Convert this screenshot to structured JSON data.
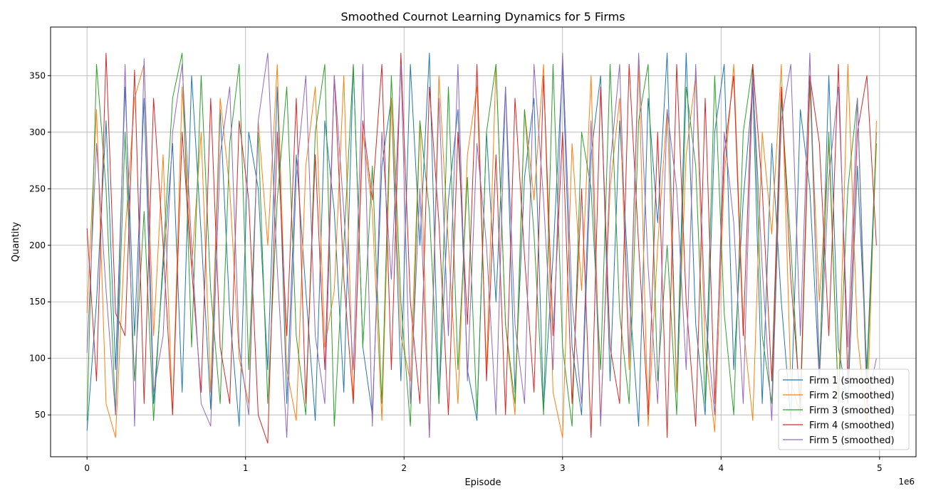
{
  "chart_data": {
    "type": "line",
    "title": "Smoothed Cournot Learning Dynamics for 5 Firms",
    "xlabel": "Episode",
    "ylabel": "Quantity",
    "x_offset_label": "1e6",
    "xlim": [
      -230000,
      5230000
    ],
    "ylim": [
      13,
      393
    ],
    "x_ticks": [
      0,
      1,
      2,
      3,
      4,
      5
    ],
    "y_ticks": [
      50,
      100,
      150,
      200,
      250,
      300,
      350
    ],
    "grid": true,
    "legend_position": "bottom-right",
    "series": [
      {
        "name": "Firm 1 (smoothed)",
        "color": "#1f77b4",
        "x": [
          0,
          60000,
          120000,
          180000,
          240000,
          300000,
          360000,
          420000,
          480000,
          540000,
          600000,
          660000,
          720000,
          780000,
          840000,
          900000,
          960000,
          1020000,
          1080000,
          1140000,
          1200000,
          1260000,
          1320000,
          1380000,
          1440000,
          1500000,
          1560000,
          1620000,
          1680000,
          1740000,
          1800000,
          1860000,
          1920000,
          1980000,
          2040000,
          2100000,
          2160000,
          2220000,
          2280000,
          2340000,
          2400000,
          2460000,
          2520000,
          2580000,
          2640000,
          2700000,
          2760000,
          2820000,
          2880000,
          2940000,
          3000000,
          3060000,
          3120000,
          3180000,
          3240000,
          3300000,
          3360000,
          3420000,
          3480000,
          3540000,
          3600000,
          3660000,
          3720000,
          3780000,
          3840000,
          3900000,
          3960000,
          4020000,
          4080000,
          4140000,
          4200000,
          4260000,
          4320000,
          4380000,
          4440000,
          4500000,
          4560000,
          4620000,
          4680000,
          4740000,
          4800000,
          4860000,
          4920000,
          4980000
        ],
        "values": [
          36,
          150,
          310,
          90,
          340,
          120,
          330,
          60,
          180,
          290,
          70,
          350,
          210,
          55,
          320,
          140,
          40,
          300,
          250,
          90,
          340,
          60,
          280,
          160,
          45,
          310,
          230,
          70,
          360,
          110,
          50,
          270,
          330,
          80,
          360,
          200,
          370,
          60,
          240,
          320,
          90,
          45,
          300,
          150,
          340,
          70,
          260,
          330,
          55,
          190,
          360,
          110,
          50,
          280,
          350,
          80,
          310,
          160,
          40,
          330,
          220,
          370,
          70,
          370,
          130,
          50,
          300,
          360,
          90,
          240,
          340,
          60,
          290,
          150,
          45,
          320,
          250,
          80,
          350,
          110,
          60,
          270,
          90,
          300
        ]
      },
      {
        "name": "Firm 2 (smoothed)",
        "color": "#ff7f0e",
        "x": [
          0,
          60000,
          120000,
          180000,
          240000,
          300000,
          360000,
          420000,
          480000,
          540000,
          600000,
          660000,
          720000,
          780000,
          840000,
          900000,
          960000,
          1020000,
          1080000,
          1140000,
          1200000,
          1260000,
          1320000,
          1380000,
          1440000,
          1500000,
          1560000,
          1620000,
          1680000,
          1740000,
          1800000,
          1860000,
          1920000,
          1980000,
          2040000,
          2100000,
          2160000,
          2220000,
          2280000,
          2340000,
          2400000,
          2460000,
          2520000,
          2580000,
          2640000,
          2700000,
          2760000,
          2820000,
          2880000,
          2940000,
          3000000,
          3060000,
          3120000,
          3180000,
          3240000,
          3300000,
          3360000,
          3420000,
          3480000,
          3540000,
          3600000,
          3660000,
          3720000,
          3780000,
          3840000,
          3900000,
          3960000,
          4020000,
          4080000,
          4140000,
          4200000,
          4260000,
          4320000,
          4380000,
          4440000,
          4500000,
          4560000,
          4620000,
          4680000,
          4740000,
          4800000,
          4860000,
          4920000,
          4980000
        ],
        "values": [
          140,
          320,
          60,
          30,
          210,
          330,
          360,
          120,
          280,
          50,
          340,
          180,
          300,
          70,
          330,
          250,
          100,
          60,
          310,
          200,
          360,
          90,
          45,
          270,
          340,
          110,
          160,
          350,
          60,
          300,
          230,
          45,
          330,
          120,
          80,
          310,
          30,
          350,
          200,
          60,
          280,
          340,
          90,
          360,
          130,
          50,
          320,
          240,
          360,
          70,
          30,
          290,
          160,
          350,
          45,
          250,
          330,
          90,
          360,
          40,
          200,
          320,
          70,
          280,
          350,
          110,
          35,
          260,
          360,
          130,
          45,
          300,
          210,
          360,
          80,
          50,
          340,
          150,
          290,
          60,
          360,
          120,
          40,
          310
        ]
      },
      {
        "name": "Firm 3 (smoothed)",
        "color": "#2ca02c",
        "x": [
          0,
          60000,
          120000,
          180000,
          240000,
          300000,
          360000,
          420000,
          480000,
          540000,
          600000,
          660000,
          720000,
          780000,
          840000,
          900000,
          960000,
          1020000,
          1080000,
          1140000,
          1200000,
          1260000,
          1320000,
          1380000,
          1440000,
          1500000,
          1560000,
          1620000,
          1680000,
          1740000,
          1800000,
          1860000,
          1920000,
          1980000,
          2040000,
          2100000,
          2160000,
          2220000,
          2280000,
          2340000,
          2400000,
          2460000,
          2520000,
          2580000,
          2640000,
          2700000,
          2760000,
          2820000,
          2880000,
          2940000,
          3000000,
          3060000,
          3120000,
          3180000,
          3240000,
          3300000,
          3360000,
          3420000,
          3480000,
          3540000,
          3600000,
          3660000,
          3720000,
          3780000,
          3840000,
          3900000,
          3960000,
          4020000,
          4080000,
          4140000,
          4200000,
          4260000,
          4320000,
          4380000,
          4440000,
          4500000,
          4560000,
          4620000,
          4680000,
          4740000,
          4800000,
          4860000,
          4920000,
          4980000
        ],
        "values": [
          45,
          360,
          250,
          50,
          300,
          80,
          230,
          45,
          190,
          330,
          370,
          110,
          350,
          160,
          60,
          290,
          360,
          90,
          300,
          60,
          240,
          340,
          120,
          50,
          300,
          360,
          40,
          200,
          360,
          110,
          270,
          60,
          350,
          150,
          40,
          310,
          230,
          60,
          340,
          90,
          260,
          50,
          300,
          360,
          130,
          60,
          320,
          210,
          50,
          360,
          110,
          40,
          300,
          250,
          90,
          360,
          140,
          60,
          310,
          360,
          80,
          200,
          50,
          340,
          270,
          60,
          350,
          140,
          50,
          300,
          360,
          120,
          60,
          330,
          200,
          50,
          350,
          90,
          300,
          60,
          250,
          330,
          80,
          290
        ]
      },
      {
        "name": "Firm 4 (smoothed)",
        "color": "#d62728",
        "x": [
          0,
          60000,
          120000,
          180000,
          240000,
          300000,
          360000,
          420000,
          480000,
          540000,
          600000,
          660000,
          720000,
          780000,
          840000,
          900000,
          960000,
          1020000,
          1080000,
          1140000,
          1200000,
          1260000,
          1320000,
          1380000,
          1440000,
          1500000,
          1560000,
          1620000,
          1680000,
          1740000,
          1800000,
          1860000,
          1920000,
          1980000,
          2040000,
          2100000,
          2160000,
          2220000,
          2280000,
          2340000,
          2400000,
          2460000,
          2520000,
          2580000,
          2640000,
          2700000,
          2760000,
          2820000,
          2880000,
          2940000,
          3000000,
          3060000,
          3120000,
          3180000,
          3240000,
          3300000,
          3360000,
          3420000,
          3480000,
          3540000,
          3600000,
          3660000,
          3720000,
          3780000,
          3840000,
          3900000,
          3960000,
          4020000,
          4080000,
          4140000,
          4200000,
          4260000,
          4320000,
          4380000,
          4440000,
          4500000,
          4560000,
          4620000,
          4680000,
          4740000,
          4800000,
          4860000,
          4920000,
          4980000
        ],
        "values": [
          215,
          80,
          370,
          140,
          120,
          355,
          60,
          330,
          200,
          50,
          300,
          180,
          70,
          330,
          110,
          60,
          310,
          240,
          50,
          25,
          300,
          120,
          330,
          60,
          280,
          90,
          350,
          170,
          60,
          310,
          240,
          360,
          90,
          370,
          150,
          60,
          340,
          220,
          50,
          300,
          130,
          360,
          80,
          280,
          50,
          330,
          190,
          70,
          350,
          120,
          300,
          60,
          250,
          30,
          340,
          110,
          60,
          360,
          200,
          50,
          300,
          30,
          360,
          150,
          40,
          330,
          60,
          280,
          350,
          120,
          360,
          250,
          80,
          340,
          170,
          60,
          350,
          290,
          120,
          360,
          80,
          300,
          350,
          200
        ]
      },
      {
        "name": "Firm 5 (smoothed)",
        "color": "#9467bd",
        "x": [
          0,
          60000,
          120000,
          180000,
          240000,
          300000,
          360000,
          420000,
          480000,
          540000,
          600000,
          660000,
          720000,
          780000,
          840000,
          900000,
          960000,
          1020000,
          1080000,
          1140000,
          1200000,
          1260000,
          1320000,
          1380000,
          1440000,
          1500000,
          1560000,
          1620000,
          1680000,
          1740000,
          1800000,
          1860000,
          1920000,
          1980000,
          2040000,
          2100000,
          2160000,
          2220000,
          2280000,
          2340000,
          2400000,
          2460000,
          2520000,
          2580000,
          2640000,
          2700000,
          2760000,
          2820000,
          2880000,
          2940000,
          3000000,
          3060000,
          3120000,
          3180000,
          3240000,
          3300000,
          3360000,
          3420000,
          3480000,
          3540000,
          3600000,
          3660000,
          3720000,
          3780000,
          3840000,
          3900000,
          3960000,
          4020000,
          4080000,
          4140000,
          4200000,
          4260000,
          4320000,
          4380000,
          4440000,
          4500000,
          4560000,
          4620000,
          4680000,
          4740000,
          4800000,
          4860000,
          4920000,
          4980000
        ],
        "values": [
          105,
          290,
          160,
          50,
          360,
          40,
          365,
          70,
          120,
          300,
          360,
          200,
          60,
          40,
          280,
          340,
          110,
          50,
          310,
          370,
          180,
          30,
          260,
          350,
          120,
          60,
          350,
          230,
          90,
          360,
          40,
          300,
          170,
          360,
          60,
          250,
          30,
          330,
          120,
          360,
          80,
          290,
          200,
          50,
          340,
          130,
          60,
          360,
          240,
          90,
          370,
          150,
          60,
          310,
          40,
          270,
          360,
          100,
          370,
          180,
          60,
          320,
          250,
          90,
          360,
          140,
          50,
          300,
          220,
          60,
          350,
          180,
          45,
          310,
          360,
          120,
          370,
          80,
          260,
          340,
          110,
          330,
          60,
          100
        ]
      }
    ]
  }
}
